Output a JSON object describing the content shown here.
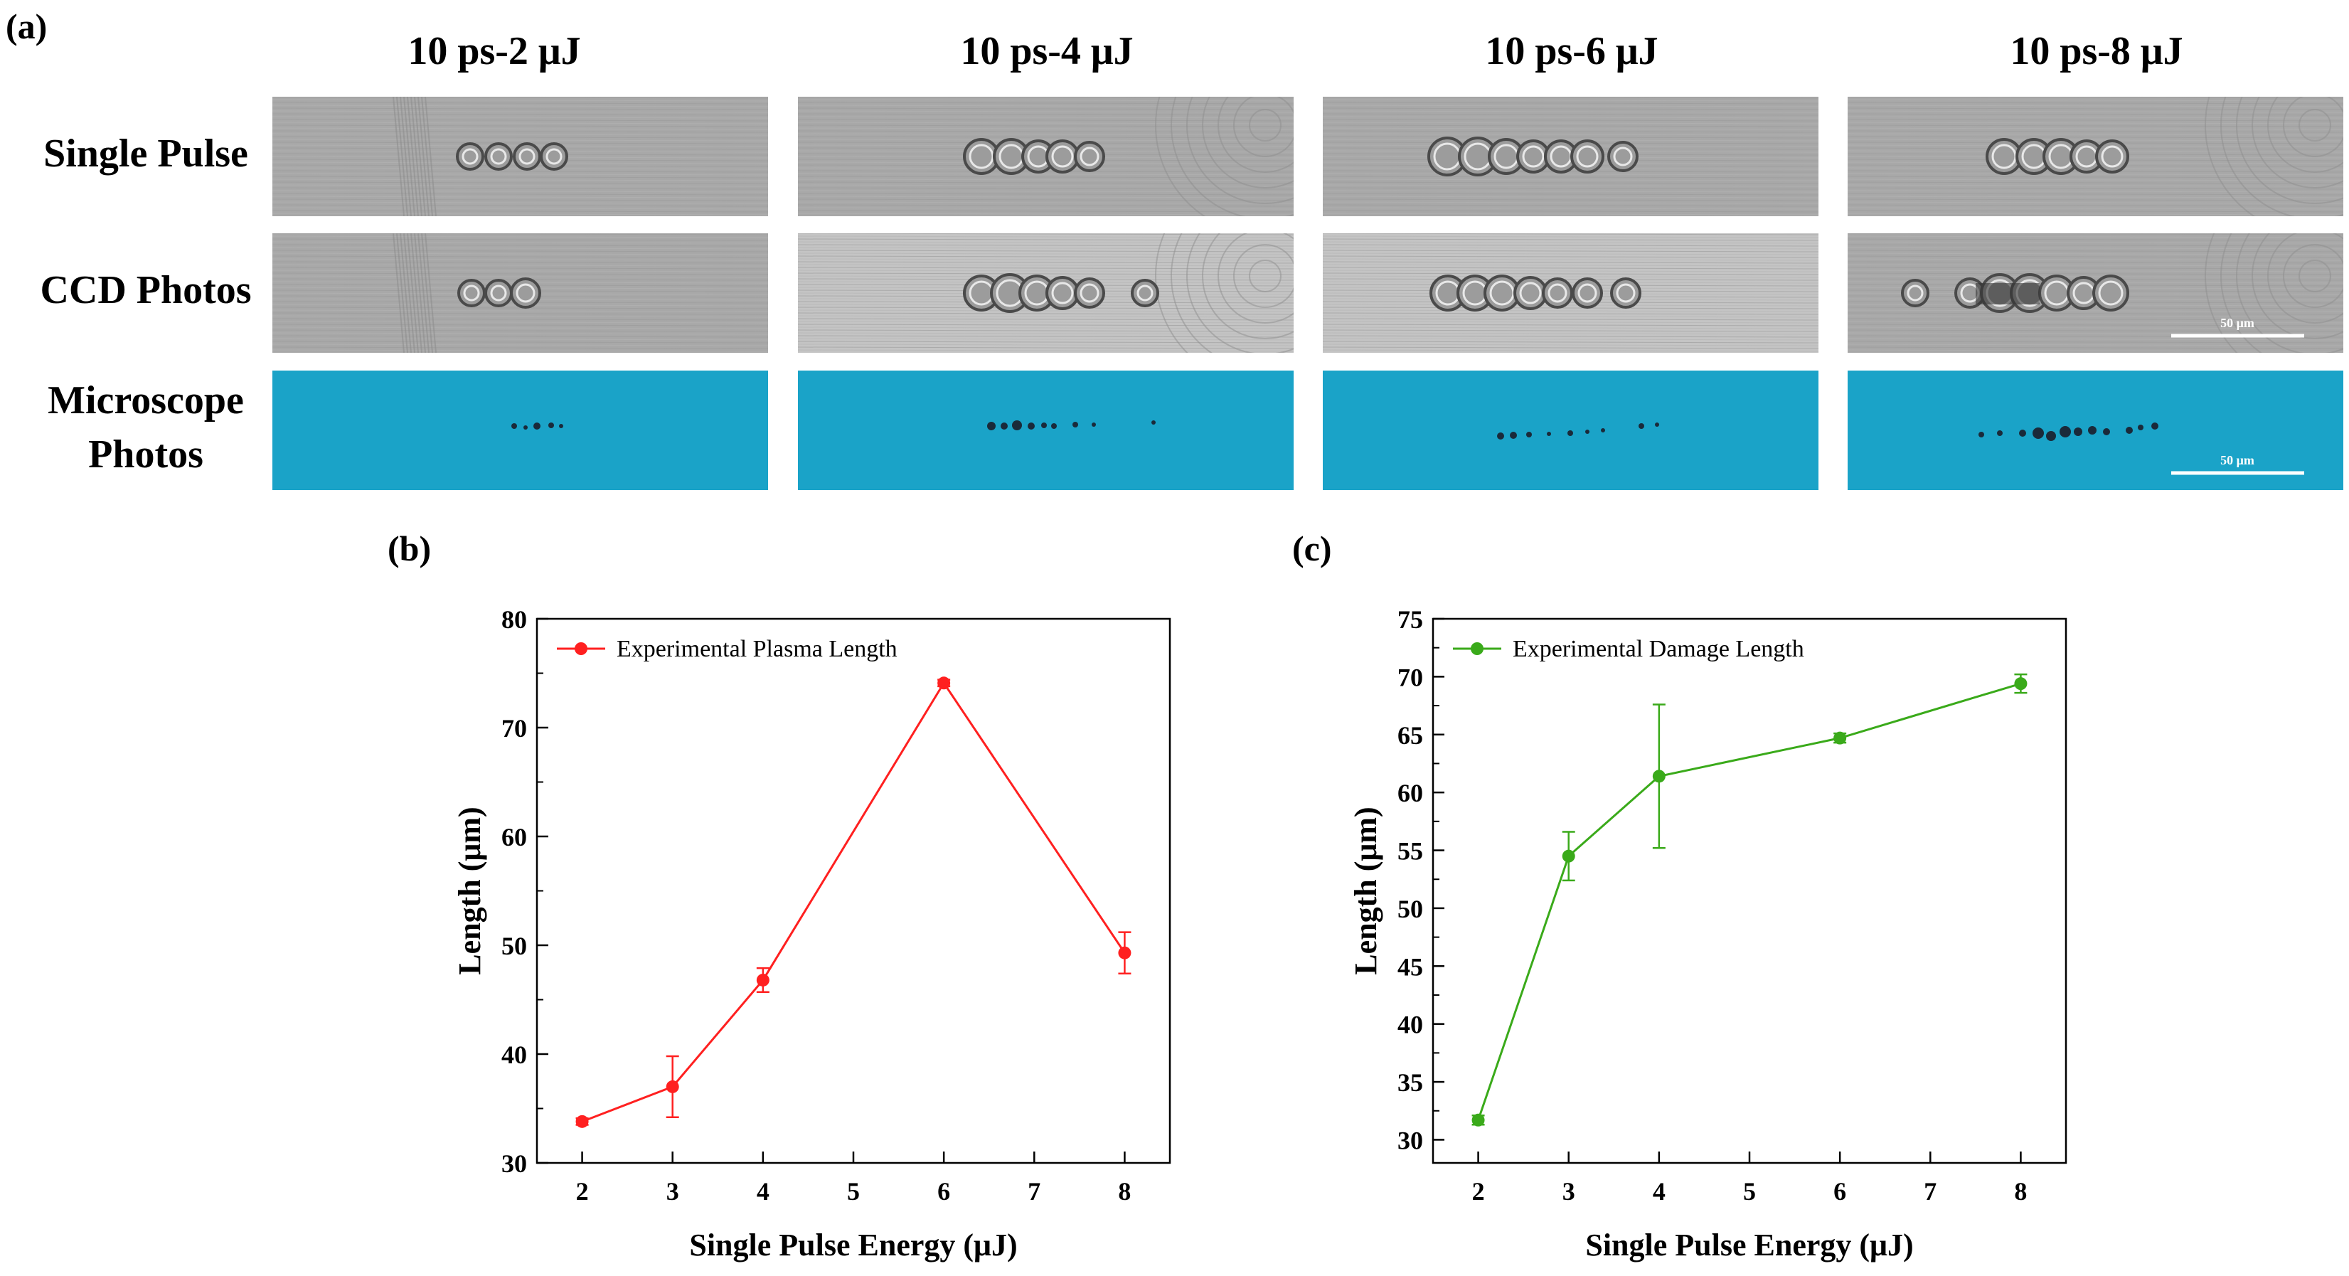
{
  "figure": {
    "panel_a_label": "(a)",
    "panel_b_label": "(b)",
    "panel_c_label": "(c)",
    "columns": [
      "10 ps-2 μJ",
      "10 ps-4 μJ",
      "10 ps-6 μJ",
      "10 ps-8 μJ"
    ],
    "rows": [
      {
        "label": "Single Pulse"
      },
      {
        "label": "CCD Photos"
      },
      {
        "label": "Microscope\nPhotos"
      }
    ],
    "scale_bar_label": "50 μm",
    "colors": {
      "ccd_gray": "#a8a8a8",
      "ccd_light": "#c4c4c4",
      "microscope_blue": "#1aa3c8",
      "damage_dark": "#1a2a3a"
    }
  },
  "chart_data": [
    {
      "type": "line",
      "title": "",
      "xlabel": "Single Pulse Energy (μJ)",
      "ylabel": "Length (μm)",
      "xlim": [
        1.5,
        8.5
      ],
      "ylim": [
        30,
        80
      ],
      "xticks": [
        "2",
        "3",
        "4",
        "5",
        "6",
        "7",
        "8"
      ],
      "yticks": [
        "30",
        "40",
        "50",
        "60",
        "70",
        "80"
      ],
      "legend_position": "top-left",
      "grid": false,
      "series": [
        {
          "name": "Experimental Plasma Length",
          "color": "#ff2020",
          "x": [
            2,
            3,
            4,
            6,
            8
          ],
          "y": [
            33.8,
            37.0,
            46.8,
            74.1,
            49.3
          ],
          "err": [
            0.3,
            2.8,
            1.1,
            0.3,
            1.9
          ]
        }
      ]
    },
    {
      "type": "line",
      "title": "",
      "xlabel": "Single Pulse Energy (μJ)",
      "ylabel": "Length (μm)",
      "xlim": [
        1.5,
        8.5
      ],
      "ylim": [
        28,
        75
      ],
      "xticks": [
        "2",
        "3",
        "4",
        "5",
        "6",
        "7",
        "8"
      ],
      "yticks": [
        "30",
        "35",
        "40",
        "45",
        "50",
        "55",
        "60",
        "65",
        "70",
        "75"
      ],
      "legend_position": "top-left",
      "grid": false,
      "series": [
        {
          "name": "Experimental Damage Length",
          "color": "#3aaa1a",
          "x": [
            2,
            3,
            4,
            6,
            8
          ],
          "y": [
            31.7,
            54.5,
            61.4,
            64.7,
            69.4
          ],
          "err": [
            0.4,
            2.1,
            6.2,
            0.4,
            0.8
          ]
        }
      ]
    }
  ]
}
